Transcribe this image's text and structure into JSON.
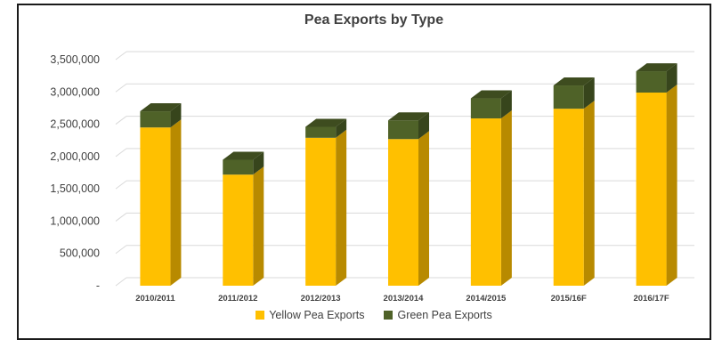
{
  "chart_data": {
    "type": "bar",
    "stacked": true,
    "three_d": true,
    "title": "Pea Exports by Type",
    "categories": [
      "2010/2011",
      "2011/2012",
      "2012/2013",
      "2013/2014",
      "2014/2015",
      "2015/16F",
      "2016/17F"
    ],
    "series": [
      {
        "name": "Yellow Pea Exports",
        "color": "#FFC000",
        "values": [
          2450000,
          1720000,
          2290000,
          2270000,
          2590000,
          2740000,
          2990000
        ]
      },
      {
        "name": "Green Pea Exports",
        "color": "#4F6228",
        "values": [
          250000,
          230000,
          170000,
          290000,
          310000,
          360000,
          330000
        ]
      }
    ],
    "ylim": [
      0,
      3500000
    ],
    "yticks": [
      0,
      500000,
      1000000,
      1500000,
      2000000,
      2500000,
      3000000,
      3500000
    ],
    "ytick_labels": [
      "-",
      "500,000",
      "1,000,000",
      "1,500,000",
      "2,000,000",
      "2,500,000",
      "3,000,000",
      "3,500,000"
    ],
    "grid": true,
    "legend_position": "bottom"
  }
}
